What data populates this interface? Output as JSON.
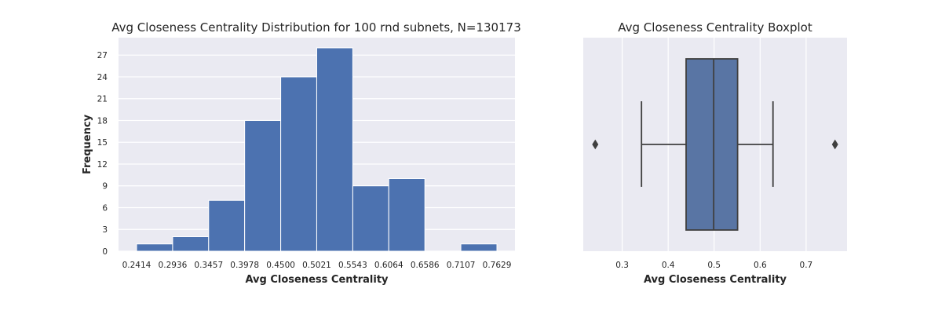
{
  "chart_data": [
    {
      "type": "bar",
      "title": "Avg Closeness Centrality Distribution for 100 rnd subnets, N=130173",
      "xlabel": "Avg Closeness Centrality",
      "ylabel": "Frequency",
      "bin_edges": [
        0.2414,
        0.2936,
        0.3457,
        0.3978,
        0.45,
        0.5021,
        0.5543,
        0.6064,
        0.6586,
        0.7107,
        0.7629
      ],
      "x_tick_labels": [
        "0.2414",
        "0.2936",
        "0.3457",
        "0.3978",
        "0.4500",
        "0.5021",
        "0.5543",
        "0.6064",
        "0.6586",
        "0.7107",
        "0.7629"
      ],
      "values": [
        1,
        2,
        7,
        18,
        24,
        28,
        9,
        10,
        0,
        1
      ],
      "ylim": [
        0,
        29.4
      ],
      "y_ticks": [
        0,
        3,
        6,
        9,
        12,
        15,
        18,
        21,
        24,
        27
      ],
      "xlim": [
        0.2153,
        0.789
      ],
      "grid": true,
      "colors": {
        "bar": "#4c72b0",
        "background": "#eaeaf2",
        "grid": "#ffffff"
      }
    },
    {
      "type": "boxplot",
      "title": "Avg Closeness Centrality Boxplot",
      "xlabel": "Avg Closeness Centrality",
      "x_ticks": [
        0.3,
        0.4,
        0.5,
        0.6,
        0.7
      ],
      "x_tick_labels": [
        "0.3",
        "0.4",
        "0.5",
        "0.6",
        "0.7"
      ],
      "xlim": [
        0.2153,
        0.789
      ],
      "whisker_low": 0.342,
      "q1": 0.439,
      "median": 0.499,
      "q3": 0.551,
      "whisker_high": 0.628,
      "outliers": [
        0.2414,
        0.7629
      ],
      "grid": true,
      "colors": {
        "box": "#5975a4",
        "line": "#3f3f3f",
        "background": "#eaeaf2",
        "grid": "#ffffff"
      }
    }
  ]
}
